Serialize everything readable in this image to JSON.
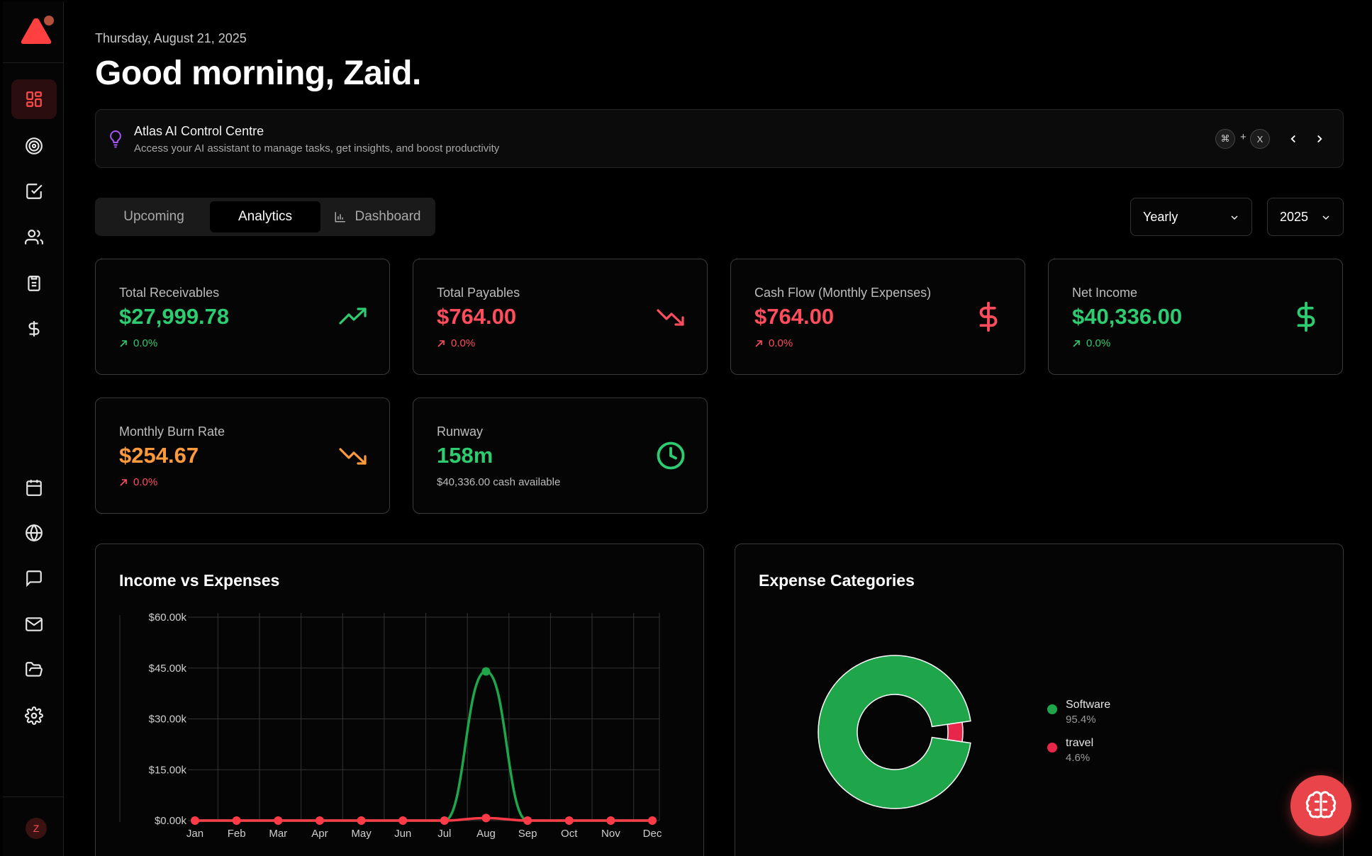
{
  "header": {
    "date": "Thursday, August 21, 2025",
    "greeting": "Good morning, Zaid."
  },
  "atlas": {
    "title": "Atlas AI Control Centre",
    "subtitle": "Access your AI assistant to manage tasks, get insights, and boost productivity",
    "shortcut_key1": "⌘",
    "shortcut_plus": "+",
    "shortcut_key2": "X"
  },
  "tabs": [
    {
      "label": "Upcoming"
    },
    {
      "label": "Analytics"
    },
    {
      "label": "Dashboard"
    }
  ],
  "filters": {
    "period": "Yearly",
    "year": "2025"
  },
  "user": {
    "initial": "Z"
  },
  "colors": {
    "accent": "#e8444a",
    "positive": "#2ecc71",
    "negative": "#ff4d5e",
    "warning": "#ff9a3c"
  },
  "stats": {
    "receivables": {
      "label": "Total Receivables",
      "value": "$27,999.78",
      "delta": "0.0%"
    },
    "payables": {
      "label": "Total Payables",
      "value": "$764.00",
      "delta": "0.0%"
    },
    "cashflow": {
      "label": "Cash Flow (Monthly Expenses)",
      "value": "$764.00",
      "delta": "0.0%"
    },
    "net_income": {
      "label": "Net Income",
      "value": "$40,336.00",
      "delta": "0.0%"
    },
    "burn_rate": {
      "label": "Monthly Burn Rate",
      "value": "$254.67",
      "delta": "0.0%"
    },
    "runway": {
      "label": "Runway",
      "value": "158m",
      "sub": "$40,336.00 cash available"
    }
  },
  "chart_data": [
    {
      "type": "line",
      "title": "Income vs Expenses",
      "categories": [
        "Jan",
        "Feb",
        "Mar",
        "Apr",
        "May",
        "Jun",
        "Jul",
        "Aug",
        "Sep",
        "Oct",
        "Nov",
        "Dec"
      ],
      "y_ticks": [
        "$0.00k",
        "$15.00k",
        "$30.00k",
        "$45.00k",
        "$60.00k"
      ],
      "ylim": [
        0,
        60000
      ],
      "grid": true,
      "series": [
        {
          "color": "#1fa64a",
          "values": [
            0,
            0,
            0,
            0,
            0,
            0,
            0,
            44000,
            0,
            0,
            0,
            0
          ]
        },
        {
          "color": "#ff3b47",
          "values": [
            0,
            0,
            0,
            0,
            0,
            0,
            0,
            764,
            0,
            0,
            0,
            0
          ]
        }
      ]
    },
    {
      "type": "pie",
      "title": "Expense Categories",
      "slices": [
        {
          "name": "Software",
          "value": 95.4,
          "label": "95.4%",
          "color": "#1fa64a"
        },
        {
          "name": "travel",
          "value": 4.6,
          "label": "4.6%",
          "color": "#e8264a"
        }
      ]
    }
  ]
}
